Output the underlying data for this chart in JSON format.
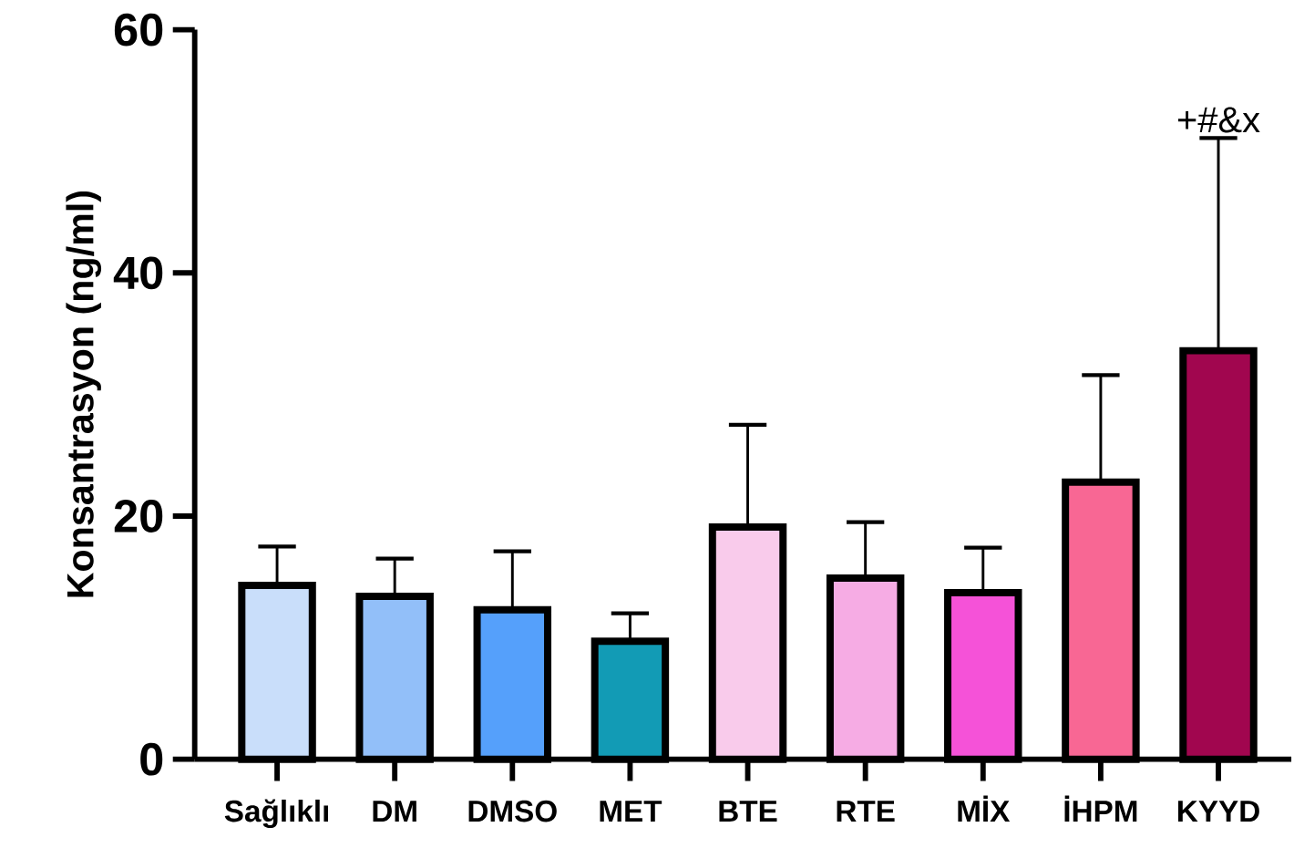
{
  "chart_data": {
    "type": "bar",
    "ylabel": "Konsantrasyon (ng/ml)",
    "categories": [
      "Sağlıklı",
      "DM",
      "DMSO",
      "MET",
      "BTE",
      "RTE",
      "MİX",
      "İHPM",
      "KYYD"
    ],
    "values": [
      14.3,
      13.4,
      12.3,
      9.7,
      19.1,
      14.9,
      13.7,
      22.8,
      33.6
    ],
    "colors": [
      "#c9defa",
      "#92bff9",
      "#55a0fb",
      "#129bb5",
      "#f9cbeb",
      "#f6ace4",
      "#f552d8",
      "#f86794",
      "#a1064f"
    ],
    "errors": [
      [
        14.3,
        17.5
      ],
      [
        13.4,
        16.5
      ],
      [
        12.3,
        17.1
      ],
      [
        9.7,
        12.0
      ],
      [
        19.1,
        27.5
      ],
      [
        14.9,
        19.5
      ],
      [
        13.7,
        17.4
      ],
      [
        22.8,
        31.6
      ],
      [
        33.6,
        51.1
      ]
    ],
    "ylim": [
      0,
      60
    ],
    "yticks": [
      0,
      20,
      40,
      60
    ],
    "annotations": [
      {
        "text": "+#&x",
        "x": "KYYD",
        "y": 51.1
      }
    ]
  }
}
